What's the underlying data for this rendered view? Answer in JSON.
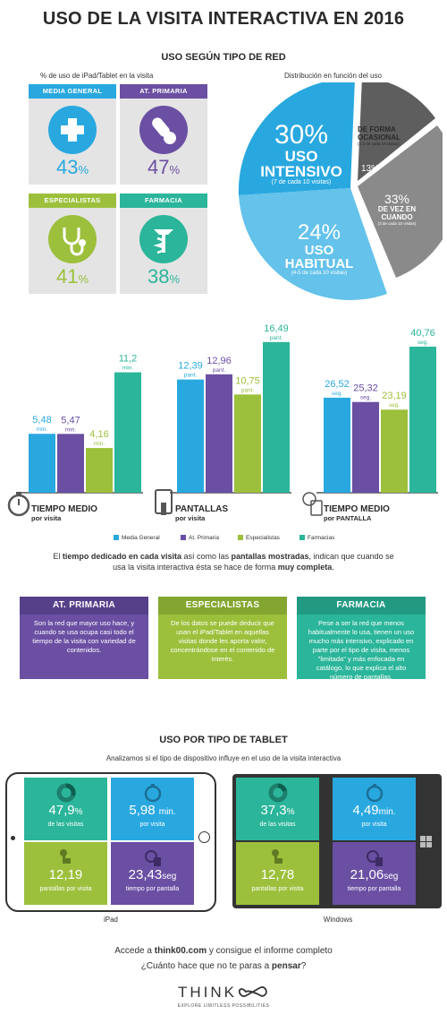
{
  "title": "USO DE LA VISITA INTERACTIVA EN 2016",
  "section1": {
    "heading": "USO SEGÚN TIPO DE RED",
    "left_caption": "% de uso de iPad/Tablet en la visita",
    "right_caption": "Distribución en función del uso",
    "cards": [
      {
        "name": "MEDIA GENERAL",
        "value": "43",
        "unit": "%",
        "color": "#29a8e0",
        "icon": "plus-icon"
      },
      {
        "name": "AT. PRIMARIA",
        "value": "47",
        "unit": "%",
        "color": "#6a4fa3",
        "icon": "pill-icon"
      },
      {
        "name": "ESPECIALISTAS",
        "value": "41",
        "unit": "%",
        "color": "#9cc03c",
        "icon": "stethoscope-icon"
      },
      {
        "name": "FARMACIA",
        "value": "38",
        "unit": "%",
        "color": "#2bb59a",
        "icon": "caduceus-icon"
      }
    ],
    "pie": {
      "intensivo": {
        "pct": "30%",
        "label1": "USO",
        "label2": "INTENSIVO",
        "detail": "(7 de cada 10 visitas)",
        "value": 30
      },
      "habitual": {
        "pct": "24%",
        "label1": "USO",
        "label2": "HABITUAL",
        "detail": "(4-5 de cada 10 visitas)",
        "value": 24
      },
      "ocasional": {
        "pct": "13%",
        "label1": "DE FORMA",
        "label2": "OCASIONAL",
        "detail": "(1-2 de cada 10 visitas)",
        "value": 13
      },
      "vez": {
        "pct": "33%",
        "label1": "DE VEZ EN",
        "label2": "CUANDO",
        "detail": "(3 de cada 10 visitas)",
        "value": 33
      }
    }
  },
  "chart_data": [
    {
      "type": "bar",
      "title": "TIEMPO MEDIO",
      "subtitle": "por visita",
      "categories": [
        "Media General",
        "At. Primaria",
        "Especialistas",
        "Farmacias"
      ],
      "values": [
        5.48,
        5.47,
        4.16,
        11.2
      ],
      "labels": [
        "5,48",
        "5,47",
        "4,16",
        "11,2"
      ],
      "unit": "min."
    },
    {
      "type": "bar",
      "title": "PANTALLAS",
      "subtitle": "por visita",
      "categories": [
        "Media General",
        "At. Primaria",
        "Especialistas",
        "Farmacias"
      ],
      "values": [
        12.39,
        12.96,
        10.75,
        16.49
      ],
      "labels": [
        "12,39",
        "12,96",
        "10,75",
        "16,49"
      ],
      "unit": "pant."
    },
    {
      "type": "bar",
      "title": "TIEMPO MEDIO",
      "subtitle": "por PANTALLA",
      "categories": [
        "Media General",
        "At. Primaria",
        "Especialistas",
        "Farmacias"
      ],
      "values": [
        26.52,
        25.32,
        23.19,
        40.76
      ],
      "labels": [
        "26,52",
        "25,32",
        "23,19",
        "40,76"
      ],
      "unit": "seg."
    }
  ],
  "colors": {
    "media": "#29a8e0",
    "primaria": "#6a4fa3",
    "especialistas": "#9cc03c",
    "farmacia": "#2bb59a",
    "grey": "#8a8a8a",
    "dark": "#555555"
  },
  "legend": [
    "Media General",
    "At. Primaria",
    "Especialistas",
    "Farmacias"
  ],
  "summary": {
    "pre": "El ",
    "b1": "tiempo dedicado en cada visita",
    "mid": " así como las ",
    "b2": "pantallas mostradas",
    "post": ", indican que cuando se usa la visita interactiva ésta se hace de forma ",
    "b3": "muy completa",
    "end": "."
  },
  "boxes": [
    {
      "title": "AT. PRIMARIA",
      "text": "Son la red que mayor uso hace, y cuando se usa ocupa casi todo el tiempo de la visita con variedad de contenidos."
    },
    {
      "title": "ESPECIALISTAS",
      "text": "De los datos se puede deducir que usan el iPad/Tablet en aquellas visitas donde les aporta valor, concentrándose en el contenido de interés."
    },
    {
      "title": "FARMACIA",
      "text": "Pese a ser la red que menos habitualmente lo usa, tienen un uso mucho más intensivo, explicado en parte por el tipo de visita, menos \"limitada\" y más enfocada en catálogo, lo que explica el alto número de pantallas."
    }
  ],
  "section3": {
    "heading": "USO POR TIPO DE TABLET",
    "caption": "Analizamos si el tipo de dispositivo influye en el uso de la visita interactiva",
    "ipad": {
      "device": "iPad",
      "visits": "47,9",
      "visits_unit": "%",
      "visits_label": "de las visitas",
      "time": "5,98",
      "time_unit": "min.",
      "time_label": "por visita",
      "screens": "12,19",
      "screens_label": "pantallas por visita",
      "persec": "23,43",
      "persec_unit": "seg",
      "persec_label": "tiempo por pantalla"
    },
    "windows": {
      "device": "Windows",
      "visits": "37,3",
      "visits_unit": "%",
      "visits_label": "de las visitas",
      "time": "4,49",
      "time_unit": "min.",
      "time_label": "por visita",
      "screens": "12,78",
      "screens_label": "pantallas por visita",
      "persec": "21,06",
      "persec_unit": "seg",
      "persec_label": "tiempo por pantalla"
    }
  },
  "footer": {
    "line1_pre": "Accede a ",
    "line1_b": "think00.com",
    "line1_post": " y consigue el informe completo",
    "line2_pre": "¿Cuánto hace que no te paras a ",
    "line2_b": "pensar",
    "line2_post": "?",
    "logo": "THINK",
    "tagline": "EXPLORE LIMITLESS POSSIBILITIES"
  }
}
